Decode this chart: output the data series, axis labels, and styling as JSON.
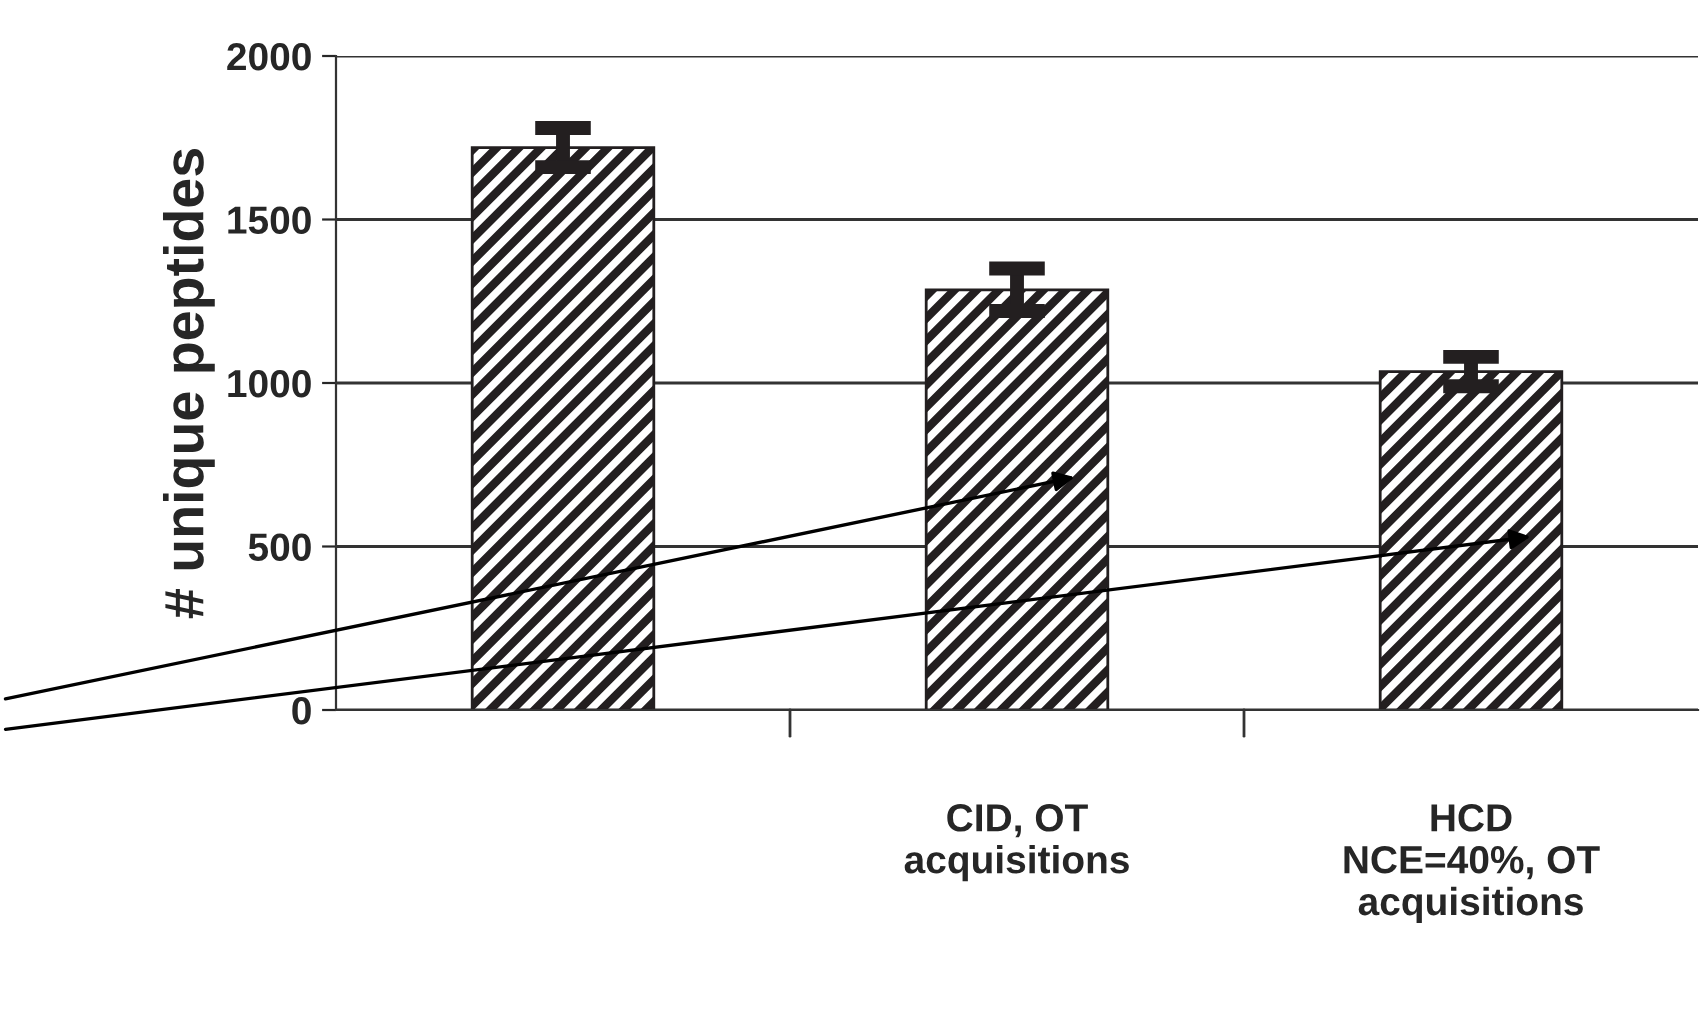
{
  "chart_data": {
    "type": "bar",
    "ylabel": "# unique peptides",
    "categories": [
      null,
      "CID, OT\nacquisitions",
      "HCD\nNCE=40%, OT\nacquisitions"
    ],
    "values": [
      1720,
      1285,
      1035
    ],
    "errors": [
      60,
      65,
      45
    ],
    "color": "#231f20",
    "ylim": [
      0,
      2000
    ],
    "yticks": [
      0,
      500,
      1000,
      1500,
      2000
    ],
    "grid": "y"
  }
}
